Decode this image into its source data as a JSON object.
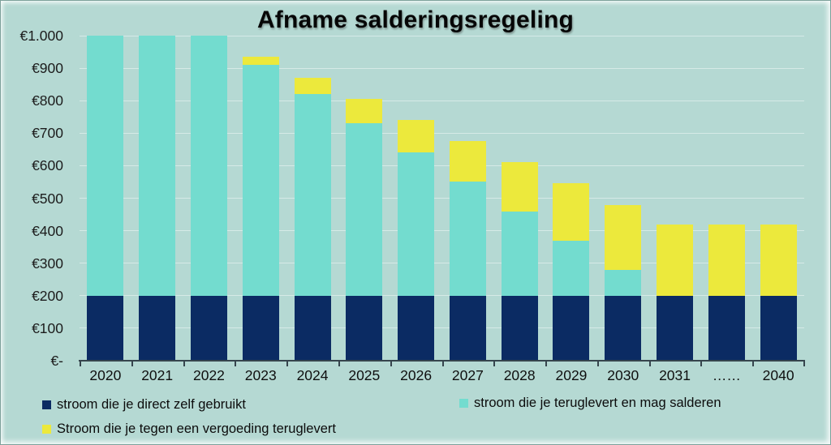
{
  "window": {
    "background": "#b5d9d3"
  },
  "chart_data": {
    "type": "bar",
    "stacked": true,
    "title": "Afname salderingsregeling",
    "categories": [
      "2020",
      "2021",
      "2022",
      "2023",
      "2024",
      "2025",
      "2026",
      "2027",
      "2028",
      "2029",
      "2030",
      "2031",
      "……",
      "2040"
    ],
    "series": [
      {
        "key": "self-used",
        "name": "stroom die je direct zelf gebruikt",
        "color": "#0b2b63",
        "values": [
          200,
          200,
          200,
          200,
          200,
          200,
          200,
          200,
          200,
          200,
          200,
          200,
          200,
          200
        ]
      },
      {
        "key": "salderen",
        "name": "stroom die je teruglevert en mag salderen",
        "color": "#73dccf",
        "values": [
          800,
          800,
          800,
          710,
          620,
          530,
          440,
          350,
          260,
          170,
          80,
          0,
          0,
          0
        ]
      },
      {
        "key": "fee",
        "name": "Stroom die je tegen een vergoeding teruglevert",
        "color": "#ece93c",
        "values": [
          0,
          0,
          0,
          25,
          50,
          75,
          100,
          125,
          150,
          175,
          200,
          220,
          220,
          220
        ]
      }
    ],
    "y_ticks": [
      {
        "label": "€1.000",
        "value": 1000
      },
      {
        "label": "€900",
        "value": 900
      },
      {
        "label": "€800",
        "value": 800
      },
      {
        "label": "€700",
        "value": 700
      },
      {
        "label": "€600",
        "value": 600
      },
      {
        "label": "€500",
        "value": 500
      },
      {
        "label": "€400",
        "value": 400
      },
      {
        "label": "€300",
        "value": 300
      },
      {
        "label": "€200",
        "value": 200
      },
      {
        "label": "€100",
        "value": 100
      },
      {
        "label": "€-",
        "value": 0
      }
    ],
    "ylim": [
      0,
      1000
    ],
    "grid": true,
    "legend_position": "bottom"
  },
  "axis": {
    "color": "#36454d",
    "text_color": "#1c1c1c"
  }
}
